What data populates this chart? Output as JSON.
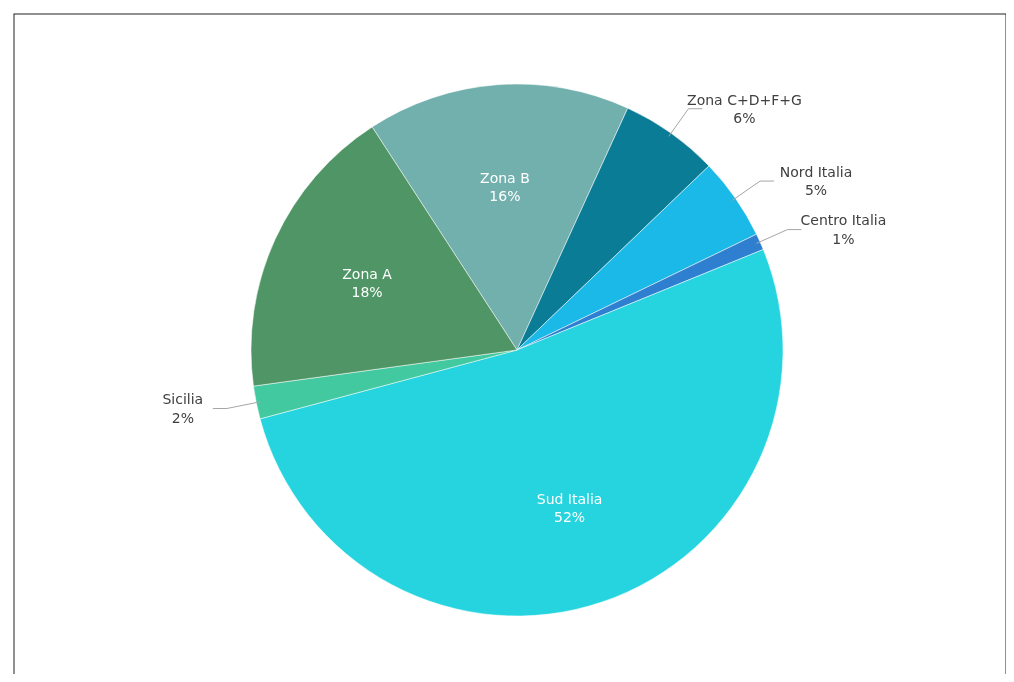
{
  "chart_data": {
    "type": "pie",
    "categories": [
      "Zona B",
      "Zona C+D+F+G",
      "Nord Italia",
      "Centro Italia",
      "Sud Italia",
      "Sicilia",
      "Zona A"
    ],
    "values": [
      16,
      6,
      5,
      1,
      52,
      2,
      18
    ],
    "value_labels": [
      "16%",
      "6%",
      "5%",
      "1%",
      "52%",
      "2%",
      "18%"
    ],
    "colors": [
      "#72b0ad",
      "#0a7c96",
      "#1bb9e8",
      "#2e7fd0",
      "#26d4e0",
      "#43c9a0",
      "#4f9565"
    ]
  }
}
